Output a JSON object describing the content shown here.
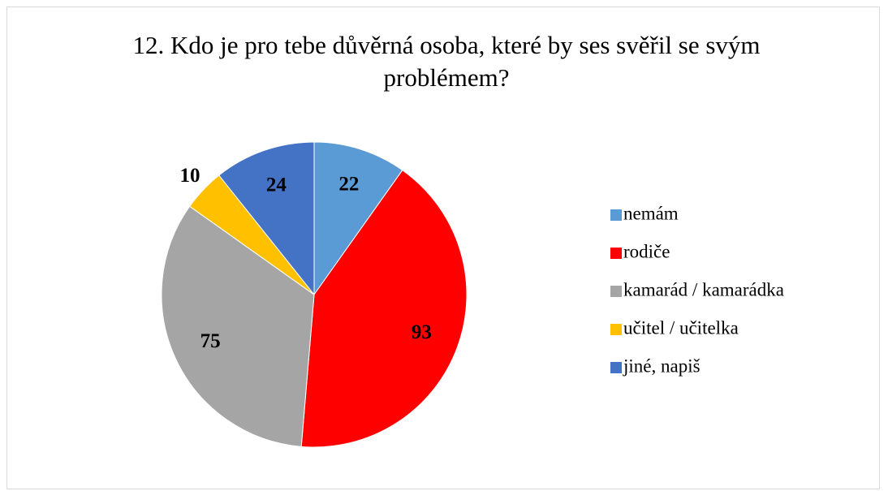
{
  "chart_data": {
    "type": "pie",
    "title": "12. Kdo je pro tebe důvěrná osoba, které by ses svěřil se svým problémem?",
    "categories": [
      "nemám",
      "rodiče",
      "kamarád / kamarádka",
      "učitel / učitelka",
      "jiné, napiš"
    ],
    "values": [
      22,
      93,
      75,
      10,
      24
    ],
    "colors": [
      "#5b9bd5",
      "#ff0000",
      "#a5a5a5",
      "#ffc000",
      "#4472c4"
    ],
    "legend": "right"
  }
}
